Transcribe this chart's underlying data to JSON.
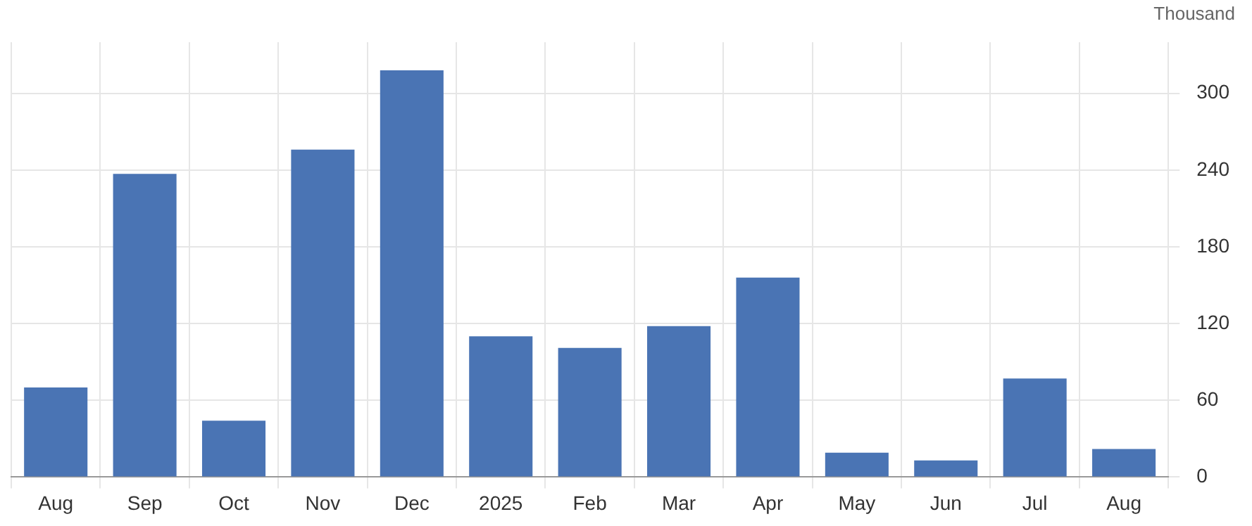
{
  "chart_data": {
    "type": "bar",
    "ylabel": "Thousand",
    "categories": [
      "Aug",
      "Sep",
      "Oct",
      "Nov",
      "Dec",
      "2025",
      "Feb",
      "Mar",
      "Apr",
      "May",
      "Jun",
      "Jul",
      "Aug"
    ],
    "series": [
      {
        "color": "#4a74b4",
        "values": [
          70,
          237,
          44,
          256,
          318,
          110,
          101,
          118,
          156,
          19,
          13,
          77,
          22
        ]
      }
    ],
    "ylim": [
      0,
      340
    ],
    "yticks": [
      0,
      60,
      120,
      180,
      240,
      300
    ],
    "grid": true,
    "legend": false
  }
}
